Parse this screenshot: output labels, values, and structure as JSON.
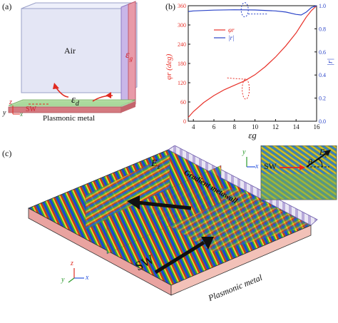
{
  "panels": {
    "a": {
      "label": "(a)",
      "air": "Air",
      "eps_g": "ε",
      "eps_g_sub": "g",
      "eps_d": "ε",
      "eps_d_sub": "d",
      "sw": "SW",
      "plasmonic": "Plasmonic metal",
      "axes": {
        "z": "z",
        "y": "y",
        "x": "x"
      }
    },
    "b": {
      "label": "(b)",
      "ylabel_left": "φ",
      "ylabel_left_sub": "r",
      "ylabel_left_unit": "(deg)",
      "ylabel_right": "|r|",
      "xlabel": "ε",
      "xlabel_sub": "g",
      "legend": [
        "φr",
        "|r|"
      ]
    },
    "c": {
      "label": "(c)",
      "ez": "E",
      "ez_sub": "z",
      "metawall": "Gradient metawall",
      "sw": "SW",
      "plasmonic": "Plasmonic metal",
      "axes": {
        "z": "z",
        "y": "y",
        "x": "x"
      },
      "inset": {
        "sw": "SW",
        "theta": "θ",
        "ez": "E",
        "ez_sub": "z",
        "y": "y",
        "x": "x"
      }
    }
  },
  "chart_data": {
    "type": "line",
    "title": "",
    "xlabel": "εg",
    "ylabel": "φr (deg)",
    "ylabel_right": "|r|",
    "xlim": [
      3.5,
      16
    ],
    "ylim_left": [
      0,
      360
    ],
    "ylim_right": [
      0,
      1.0
    ],
    "xticks": [
      4,
      6,
      8,
      10,
      12,
      14,
      16
    ],
    "yticks_left": [
      0,
      60,
      120,
      180,
      240,
      300,
      360
    ],
    "yticks_right": [
      0,
      0.2,
      0.4,
      0.6,
      0.8,
      1.0
    ],
    "series": [
      {
        "name": "φr",
        "axis": "left",
        "color": "#e8322a",
        "x": [
          3.5,
          4,
          5,
          6,
          7,
          8,
          9,
          10,
          11,
          12,
          13,
          14,
          14.5,
          15,
          15.5,
          16
        ],
        "y": [
          12,
          30,
          58,
          80,
          98,
          112,
          126,
          145,
          170,
          200,
          235,
          275,
          300,
          325,
          345,
          360
        ]
      },
      {
        "name": "|r|",
        "axis": "right",
        "color": "#2b44c8",
        "x": [
          3.5,
          4,
          6,
          8,
          10,
          12,
          13,
          14,
          14.5,
          15,
          15.5,
          16
        ],
        "y": [
          0.95,
          0.955,
          0.962,
          0.965,
          0.963,
          0.955,
          0.945,
          0.925,
          0.92,
          0.945,
          0.985,
          1.0
        ]
      }
    ],
    "legend_position": "top-left",
    "grid": false
  }
}
